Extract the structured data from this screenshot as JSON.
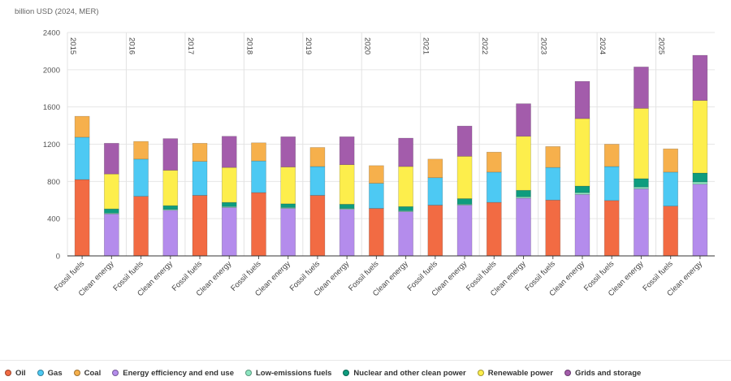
{
  "chart_data": {
    "type": "bar",
    "stacked": true,
    "ylabel": "billion USD (2024, MER)",
    "ylim": [
      0,
      2400
    ],
    "yticks": [
      0,
      400,
      800,
      1200,
      1600,
      2000,
      2400
    ],
    "years": [
      "2015",
      "2016",
      "2017",
      "2018",
      "2019",
      "2020",
      "2021",
      "2022",
      "2023",
      "2024",
      "2025"
    ],
    "categories": [
      "Fossil fuels",
      "Clean energy",
      "Fossil fuels",
      "Clean energy",
      "Fossil fuels",
      "Clean energy",
      "Fossil fuels",
      "Clean energy",
      "Fossil fuels",
      "Clean energy",
      "Fossil fuels",
      "Clean energy",
      "Fossil fuels",
      "Clean energy",
      "Fossil fuels",
      "Clean energy",
      "Fossil fuels",
      "Clean energy",
      "Fossil fuels",
      "Clean energy",
      "Fossil fuels",
      "Clean energy"
    ],
    "series": [
      {
        "name": "Oil",
        "color": "#f26b43",
        "values": [
          820,
          0,
          640,
          0,
          650,
          0,
          680,
          0,
          650,
          0,
          510,
          0,
          545,
          0,
          575,
          0,
          600,
          0,
          595,
          0,
          535,
          0
        ]
      },
      {
        "name": "Gas",
        "color": "#4dc9f3",
        "values": [
          455,
          0,
          400,
          0,
          365,
          0,
          340,
          0,
          310,
          0,
          270,
          0,
          295,
          0,
          325,
          0,
          350,
          0,
          365,
          0,
          365,
          0
        ]
      },
      {
        "name": "Coal",
        "color": "#f6b04c",
        "values": [
          225,
          0,
          190,
          0,
          195,
          0,
          195,
          0,
          205,
          0,
          190,
          0,
          200,
          0,
          215,
          0,
          225,
          0,
          240,
          0,
          250,
          0
        ]
      },
      {
        "name": "Energy efficiency and end use",
        "color": "#b48cec",
        "values": [
          0,
          450,
          0,
          490,
          0,
          520,
          0,
          510,
          0,
          500,
          0,
          475,
          0,
          545,
          0,
          620,
          0,
          660,
          0,
          720,
          0,
          770
        ]
      },
      {
        "name": "Low-emissions fuels",
        "color": "#8de6c1",
        "values": [
          0,
          10,
          0,
          10,
          0,
          10,
          0,
          10,
          0,
          10,
          0,
          10,
          0,
          10,
          0,
          15,
          0,
          20,
          0,
          20,
          0,
          25
        ]
      },
      {
        "name": "Nuclear and other clean power",
        "color": "#0e9c7e",
        "values": [
          0,
          45,
          0,
          40,
          0,
          45,
          0,
          40,
          0,
          45,
          0,
          45,
          0,
          60,
          0,
          70,
          0,
          70,
          0,
          90,
          0,
          95
        ]
      },
      {
        "name": "Renewable power",
        "color": "#fdee4c",
        "values": [
          0,
          375,
          0,
          380,
          0,
          375,
          0,
          395,
          0,
          425,
          0,
          430,
          0,
          455,
          0,
          580,
          0,
          725,
          0,
          755,
          0,
          780
        ]
      },
      {
        "name": "Grids and storage",
        "color": "#a35cab",
        "values": [
          0,
          330,
          0,
          340,
          0,
          335,
          0,
          325,
          0,
          300,
          0,
          305,
          0,
          325,
          0,
          350,
          0,
          400,
          0,
          445,
          0,
          485
        ]
      }
    ]
  }
}
